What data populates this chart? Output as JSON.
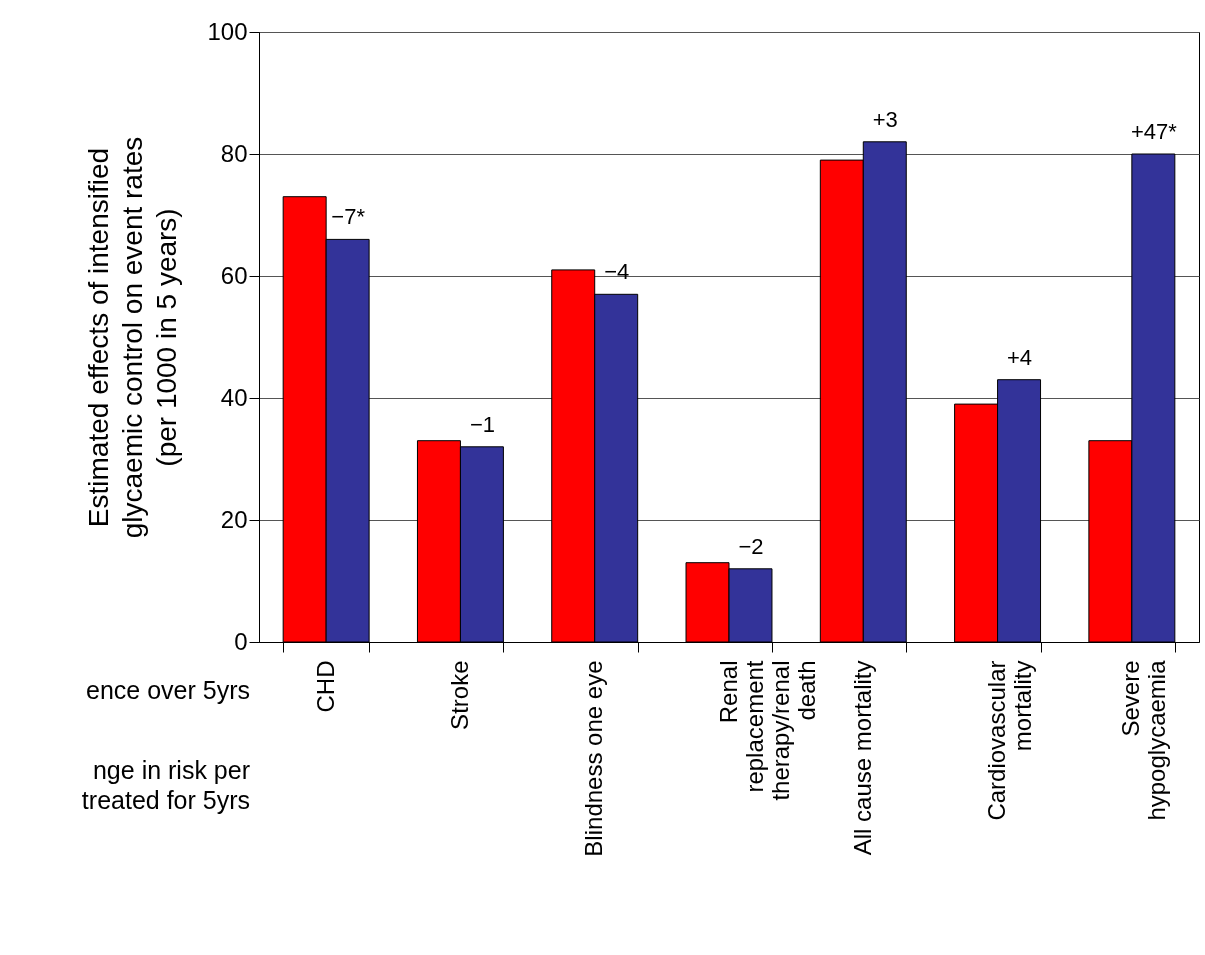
{
  "chart_data": {
    "type": "bar",
    "ylabel": "Estimated effects of intensified\nglycaemic control on event rates\n(per 1000 in 5 years)",
    "categories": [
      "CHD",
      "Stroke",
      "Blindness one eye",
      "Renal\nreplacement\ntherapy/renal\ndeath",
      "All cause mortality",
      "Cardiovascular\nmortality",
      "Severe\nhypoglycaemia"
    ],
    "series": [
      {
        "color": "#ff0000",
        "values": [
          73,
          33,
          61,
          13,
          79,
          39,
          33
        ]
      },
      {
        "color": "#333399",
        "values": [
          66,
          32,
          57,
          12,
          82,
          43,
          80
        ]
      }
    ],
    "ylim": [
      0,
      100
    ],
    "yticks": [
      0,
      20,
      40,
      60,
      80,
      100
    ],
    "grid": "y",
    "annotations": [
      {
        "text": "−7*",
        "x": "CHD",
        "y": 66
      },
      {
        "text": "−1",
        "x": "Stroke",
        "y": 32
      },
      {
        "text": "−4",
        "x": "Blindness one eye",
        "y": 57
      },
      {
        "text": "−2",
        "x": "Renal\nreplacement\ntherapy/renal\ndeath",
        "y": 12
      },
      {
        "text": "+3",
        "x": "All cause mortality",
        "y": 82
      },
      {
        "text": "+4",
        "x": "Cardiovascular\nmortality",
        "y": 43
      },
      {
        "text": "+47*",
        "x": "Severe\nhypoglycaemia",
        "y": 80
      },
      "ence over 5yrs",
      "nge in risk per\ntreated for 5yrs"
    ]
  }
}
